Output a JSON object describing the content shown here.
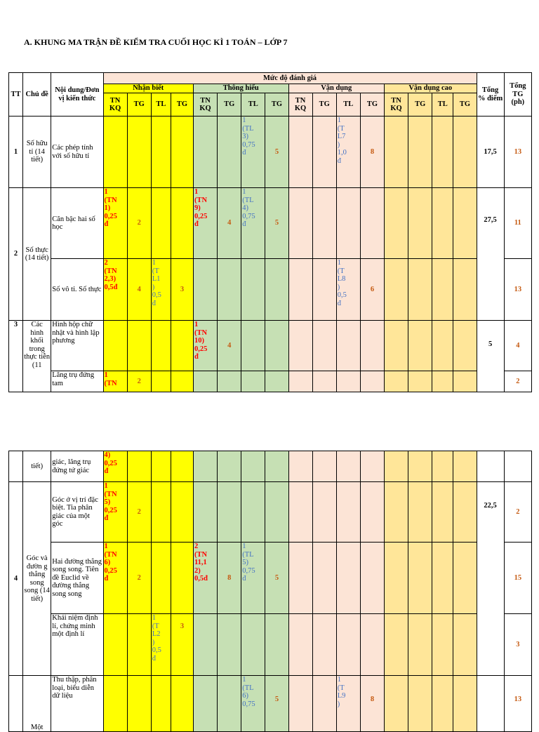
{
  "title": "A. KHUNG MA TRẬN ĐỀ KIỂM TRA CUỐI HỌC KÌ 1 TOÁN – LỚP 7",
  "header": {
    "tt": "TT",
    "chu_de": "Chủ đề",
    "noi_dung": "Nội dung/Đơn vị kiến thức",
    "muc_do": "Mức độ đánh giá",
    "nhan_biet": "Nhận biết",
    "thong_hieu": "Thông hiểu",
    "van_dung": "Vận dụng",
    "van_dung_cao": "Vận dụng cao",
    "tnkq": "TN KQ",
    "tg": "TG",
    "tl": "TL",
    "tong_diem": "Tổng % điểm",
    "tong_tg": "Tổng TG (ph)"
  },
  "rows": {
    "r1": {
      "tt": "1",
      "chu_de": "Số hữu tỉ (14 tiết)",
      "noi_dung": "Các phép tính với số hữu tỉ",
      "th_tl": "1\n(TL\n3)\n0,75\nđ",
      "th_tg": "5",
      "vd_tl": "1\n(T\nL7\n)\n1,0\nđ",
      "vd_tg": "8",
      "pct": "17,5",
      "tot": "13"
    },
    "r2": {
      "tt": "2",
      "chu_de": "Số thực (14 tiết)",
      "noi_dung": "Căn bậc hai số học",
      "nb_tn": "1\n(TN\n1)\n0,25\nđ",
      "nb_tg": "2",
      "th_tn": "1\n(TN\n9)\n0,25\nđ",
      "th_tg1": "4",
      "th_tl": "1\n(TL\n4)\n0,75\nđ",
      "th_tg2": "5",
      "pct": "27,5",
      "tot": "11"
    },
    "r3": {
      "noi_dung": "Số vô tỉ. Số thực",
      "nb_tn": "2\n(TN\n2,3)\n0,5đ",
      "nb_tg1": "4",
      "nb_tl": "1\n(T\nL1\n)\n0,5\nđ",
      "nb_tg2": "3",
      "vd_tl": "1\n(T\nL8\n)\n0,5\nđ",
      "vd_tg": "6",
      "tot": "13"
    },
    "r4": {
      "tt": "3",
      "chu_de": "Các hình khối trong thực tiễn (11",
      "noi_dung": "Hình hộp chữ nhật và hình lập phương",
      "th_tn": "1\n(TN\n10)\n0,25\nđ",
      "th_tg": "4",
      "pct": "5",
      "tot": "4"
    },
    "r5": {
      "noi_dung": "Lăng trụ đứng tam",
      "nb_tn": "1\n(TN",
      "nb_tg": "2",
      "tot": "2"
    }
  },
  "rows2": {
    "s1": {
      "chu_de": "tiết)",
      "noi_dung": "giác, lăng trụ đứng tứ giác",
      "nb_tn": "4)\n0,25\nđ"
    },
    "s2": {
      "tt": "4",
      "chu_de": "Góc và đườn g thẳng song song (14 tiết)",
      "noi_dung": "Góc ở vị trí đặc biệt. Tia phân giác của một góc",
      "nb_tn": "1\n(TN\n5)\n0,25\nđ",
      "nb_tg": "2",
      "pct": "22,5",
      "tot": "2"
    },
    "s3": {
      "noi_dung": "Hai đường thẳng song song. Tiên đề Euclid về đường thẳng song song",
      "nb_tn": "1\n(TN\n6)\n0,25\nđ",
      "nb_tg": "2",
      "th_tn": "2\n(TN\n11,1\n2)\n0,5đ",
      "th_tg1": "8",
      "th_tl": "1\n(TL\n5)\n0,75\nđ",
      "th_tg2": "5",
      "tot": "15"
    },
    "s4": {
      "noi_dung": "Khái niệm định lí, chứng minh một định lí",
      "nb_tl": "1\n(T\nL2\n)\n0,5\nđ",
      "nb_tg": "3",
      "tot": "3"
    },
    "s5": {
      "chu_de": "Một",
      "noi_dung": "Thu thập, phân loại, biểu diễn dữ liệu",
      "th_tl": "1\n(TL\n6)\n0,75",
      "th_tg": "5",
      "vd_tl": "1\n(T\nL9\n)",
      "vd_tg": "8",
      "tot": "13"
    }
  }
}
